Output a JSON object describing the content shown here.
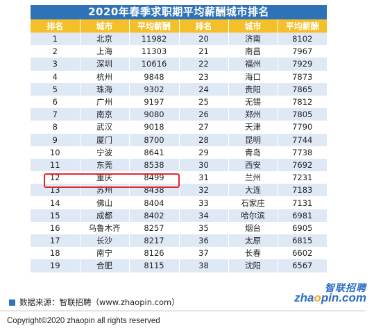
{
  "title": "2020年春季求职期平均薪酬城市排名",
  "columns": [
    "排名",
    "城市",
    "平均薪酬",
    "排名",
    "城市",
    "平均薪酬"
  ],
  "rows": [
    {
      "rank_left": "1",
      "city_left": "北京",
      "salary_left": "11982",
      "rank_right": "20",
      "city_right": "济南",
      "salary_right": "8102"
    },
    {
      "rank_left": "2",
      "city_left": "上海",
      "salary_left": "11303",
      "rank_right": "21",
      "city_right": "南昌",
      "salary_right": "7967"
    },
    {
      "rank_left": "3",
      "city_left": "深圳",
      "salary_left": "10616",
      "rank_right": "22",
      "city_right": "福州",
      "salary_right": "7929"
    },
    {
      "rank_left": "4",
      "city_left": "杭州",
      "salary_left": "9848",
      "rank_right": "23",
      "city_right": "海口",
      "salary_right": "7873"
    },
    {
      "rank_left": "5",
      "city_left": "珠海",
      "salary_left": "9302",
      "rank_right": "24",
      "city_right": "贵阳",
      "salary_right": "7865"
    },
    {
      "rank_left": "6",
      "city_left": "广州",
      "salary_left": "9197",
      "rank_right": "25",
      "city_right": "无锡",
      "salary_right": "7812"
    },
    {
      "rank_left": "7",
      "city_left": "南京",
      "salary_left": "9080",
      "rank_right": "26",
      "city_right": "郑州",
      "salary_right": "7805"
    },
    {
      "rank_left": "8",
      "city_left": "武汉",
      "salary_left": "9018",
      "rank_right": "27",
      "city_right": "天津",
      "salary_right": "7790"
    },
    {
      "rank_left": "9",
      "city_left": "厦门",
      "salary_left": "8700",
      "rank_right": "28",
      "city_right": "昆明",
      "salary_right": "7744"
    },
    {
      "rank_left": "10",
      "city_left": "宁波",
      "salary_left": "8641",
      "rank_right": "29",
      "city_right": "青岛",
      "salary_right": "7738"
    },
    {
      "rank_left": "11",
      "city_left": "东莞",
      "salary_left": "8538",
      "rank_right": "30",
      "city_right": "西安",
      "salary_right": "7692"
    },
    {
      "rank_left": "12",
      "city_left": "重庆",
      "salary_left": "8499",
      "rank_right": "31",
      "city_right": "兰州",
      "salary_right": "7231"
    },
    {
      "rank_left": "13",
      "city_left": "苏州",
      "salary_left": "8438",
      "rank_right": "32",
      "city_right": "大连",
      "salary_right": "7183"
    },
    {
      "rank_left": "14",
      "city_left": "佛山",
      "salary_left": "8404",
      "rank_right": "33",
      "city_right": "石家庄",
      "salary_right": "7131"
    },
    {
      "rank_left": "15",
      "city_left": "成都",
      "salary_left": "8402",
      "rank_right": "34",
      "city_right": "哈尔滨",
      "salary_right": "6981"
    },
    {
      "rank_left": "16",
      "city_left": "乌鲁木齐",
      "salary_left": "8257",
      "rank_right": "35",
      "city_right": "烟台",
      "salary_right": "6905"
    },
    {
      "rank_left": "17",
      "city_left": "长沙",
      "salary_left": "8217",
      "rank_right": "36",
      "city_right": "太原",
      "salary_right": "6815"
    },
    {
      "rank_left": "18",
      "city_left": "南宁",
      "salary_left": "8126",
      "rank_right": "37",
      "city_right": "长春",
      "salary_right": "6602"
    },
    {
      "rank_left": "19",
      "city_left": "合肥",
      "salary_left": "8115",
      "rank_right": "38",
      "city_right": "沈阳",
      "salary_right": "6567"
    }
  ],
  "highlighted_rank": "12",
  "source_text": "数据来源：智联招聘（www.zhaopin.com）",
  "logo": {
    "cn": "智联招聘",
    "en_pre": "zha",
    "en_o": "o",
    "en_post": "pin.com"
  },
  "copyright": "Copyright©2020 zhaopin all rights reserved",
  "colors": {
    "title_bg": "#2e73b8",
    "header_bg": "#f5bf2a",
    "row_alt": "#dfe9f6",
    "highlight": "#e8262a"
  }
}
